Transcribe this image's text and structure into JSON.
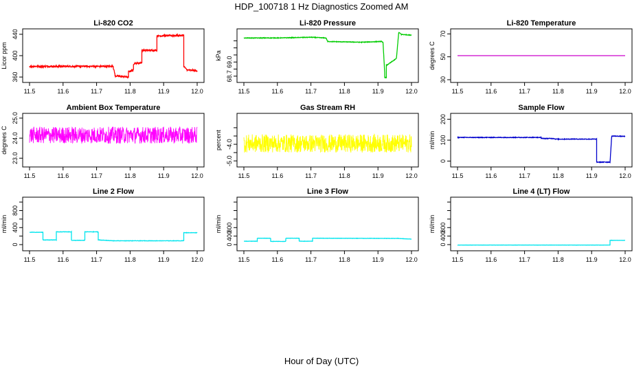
{
  "page": {
    "title": "HDP_100718  1 Hz Diagnostics Zoomed AM",
    "xlabel": "Hour of Day (UTC)"
  },
  "chart_data": [
    {
      "type": "line",
      "title": "Li-820 CO2",
      "ylabel": "Licor ppm",
      "color": "#ff0000",
      "xlim": [
        11.5,
        12.0
      ],
      "ylim": [
        355,
        445
      ],
      "xticks": [
        "11.5",
        "11.6",
        "11.7",
        "11.8",
        "11.9",
        "12.0"
      ],
      "yticks": [
        360,
        400,
        440
      ],
      "yticklabels": [
        "360",
        "400",
        "440"
      ],
      "noise": 1.5,
      "x": [
        11.5,
        11.75,
        11.75,
        11.755,
        11.755,
        11.795,
        11.795,
        11.81,
        11.81,
        11.835,
        11.835,
        11.88,
        11.88,
        11.96,
        11.96,
        11.97,
        12.0
      ],
      "y": [
        380,
        380,
        377,
        365,
        362,
        360,
        370,
        373,
        385,
        387,
        410,
        410,
        437,
        438,
        380,
        373,
        372
      ]
    },
    {
      "type": "line",
      "title": "Li-820 Pressure",
      "ylabel": "kPa",
      "color": "#00cc00",
      "xlim": [
        11.5,
        12.0
      ],
      "ylim": [
        68.65,
        69.33
      ],
      "xticks": [
        "11.5",
        "11.6",
        "11.7",
        "11.8",
        "11.9",
        "12.0"
      ],
      "yticks": [
        68.7,
        68.8,
        68.9,
        69.0,
        69.1,
        69.2
      ],
      "yticklabels": [
        "68.7",
        "",
        "69.0",
        "",
        "",
        ""
      ],
      "noise": 0.004,
      "x": [
        11.5,
        11.6,
        11.7,
        11.745,
        11.75,
        11.85,
        11.91,
        11.915,
        11.92,
        11.92,
        11.925,
        11.925,
        11.955,
        11.962,
        11.97,
        12.0
      ],
      "y": [
        69.24,
        69.24,
        69.25,
        69.24,
        69.19,
        69.18,
        69.19,
        69.18,
        68.75,
        68.68,
        68.68,
        68.85,
        68.95,
        69.32,
        69.29,
        69.28
      ]
    },
    {
      "type": "line",
      "title": "Li-820 Temperature",
      "ylabel": "degrees C",
      "color": "#cc00cc",
      "xlim": [
        11.5,
        12.0
      ],
      "ylim": [
        30,
        72
      ],
      "xticks": [
        "11.5",
        "11.6",
        "11.7",
        "11.8",
        "11.9",
        "12.0"
      ],
      "yticks": [
        30,
        50,
        70
      ],
      "yticklabels": [
        "30",
        "50",
        "70"
      ],
      "noise": 0,
      "x": [
        11.5,
        12.0
      ],
      "y": [
        51,
        51
      ]
    },
    {
      "type": "line",
      "title": "Ambient Box Temperature",
      "ylabel": "degrees C",
      "color": "#ff00ff",
      "xlim": [
        11.5,
        12.0
      ],
      "ylim": [
        22.7,
        25.1
      ],
      "xticks": [
        "11.5",
        "11.6",
        "11.7",
        "11.8",
        "11.9",
        "12.0"
      ],
      "yticks": [
        23.0,
        24.0,
        25.0
      ],
      "yticklabels": [
        "23.0",
        "24.0",
        "25.0"
      ],
      "noise": 0.42,
      "x": [
        11.5,
        12.0
      ],
      "y": [
        24.15,
        24.15
      ]
    },
    {
      "type": "line",
      "title": "Gas Stream RH",
      "ylabel": "percent",
      "color": "#ffff00",
      "xlim": [
        11.5,
        12.0
      ],
      "ylim": [
        -5.2,
        -2.3
      ],
      "xticks": [
        "11.5",
        "11.6",
        "11.7",
        "11.8",
        "11.9",
        "12.0"
      ],
      "yticks": [
        -5.0,
        -4.5,
        -4.0,
        -3.5,
        -3.0
      ],
      "yticklabels": [
        "-5.0",
        "",
        "-4.0",
        "",
        ""
      ],
      "noise": 0.55,
      "x": [
        11.5,
        12.0
      ],
      "y": [
        -3.95,
        -3.95
      ]
    },
    {
      "type": "line",
      "title": "Sample Flow",
      "ylabel": "ml/min",
      "color": "#0000cc",
      "xlim": [
        11.5,
        12.0
      ],
      "ylim": [
        -15,
        215
      ],
      "xticks": [
        "11.5",
        "11.6",
        "11.7",
        "11.8",
        "11.9",
        "12.0"
      ],
      "yticks": [
        0,
        100,
        200
      ],
      "yticklabels": [
        "0",
        "100",
        "200"
      ],
      "noise": 1.5,
      "x": [
        11.5,
        11.75,
        11.75,
        11.79,
        11.79,
        11.915,
        11.915,
        11.94,
        11.94,
        11.955,
        11.955,
        11.96,
        11.96,
        12.0
      ],
      "y": [
        113,
        113,
        108,
        108,
        105,
        105,
        -5,
        -5,
        -5,
        -5,
        -5,
        120,
        120,
        118
      ]
    },
    {
      "type": "line",
      "title": "Line 2 Flow",
      "ylabel": "ml/min",
      "color": "#00e5ee",
      "xlim": [
        11.5,
        12.0
      ],
      "ylim": [
        -80,
        1050
      ],
      "xticks": [
        "11.5",
        "11.6",
        "11.7",
        "11.8",
        "11.9",
        "12.0"
      ],
      "yticks": [
        0,
        200,
        400,
        600,
        800,
        1000
      ],
      "yticklabels": [
        "0",
        "400",
        "800"
      ],
      "ytickShown": [
        0,
        400,
        800
      ],
      "noise": 4,
      "x": [
        11.5,
        11.54,
        11.54,
        11.58,
        11.58,
        11.625,
        11.625,
        11.665,
        11.665,
        11.705,
        11.705,
        11.75,
        11.96,
        11.96,
        12.0
      ],
      "y": [
        290,
        290,
        110,
        110,
        300,
        300,
        100,
        100,
        300,
        300,
        110,
        90,
        90,
        280,
        280
      ]
    },
    {
      "type": "line",
      "title": "Line 3 Flow",
      "ylabel": "ml/min",
      "color": "#00e5ee",
      "xlim": [
        11.5,
        12.0
      ],
      "ylim": [
        -80,
        1050
      ],
      "xticks": [
        "11.5",
        "11.6",
        "11.7",
        "11.8",
        "11.9",
        "12.0"
      ],
      "yticks": [
        0,
        200,
        400,
        600,
        800,
        1000
      ],
      "yticklabels": [
        "0",
        "400",
        "800"
      ],
      "noise": 3,
      "x": [
        11.5,
        11.54,
        11.54,
        11.58,
        11.58,
        11.625,
        11.625,
        11.665,
        11.665,
        11.705,
        11.705,
        11.96,
        12.0
      ],
      "y": [
        80,
        80,
        150,
        150,
        75,
        75,
        150,
        150,
        80,
        80,
        150,
        145,
        130
      ]
    },
    {
      "type": "line",
      "title": "Line 4 (LT) Flow",
      "ylabel": "ml/min",
      "color": "#00e5ee",
      "xlim": [
        11.5,
        12.0
      ],
      "ylim": [
        -80,
        1050
      ],
      "xticks": [
        "11.5",
        "11.6",
        "11.7",
        "11.8",
        "11.9",
        "12.0"
      ],
      "yticks": [
        0,
        200,
        400,
        600,
        800,
        1000
      ],
      "yticklabels": [
        "0",
        "400",
        "800"
      ],
      "noise": 2,
      "x": [
        11.5,
        11.955,
        11.955,
        11.96,
        11.96,
        12.0
      ],
      "y": [
        -10,
        -10,
        100,
        100,
        100,
        100
      ]
    }
  ]
}
